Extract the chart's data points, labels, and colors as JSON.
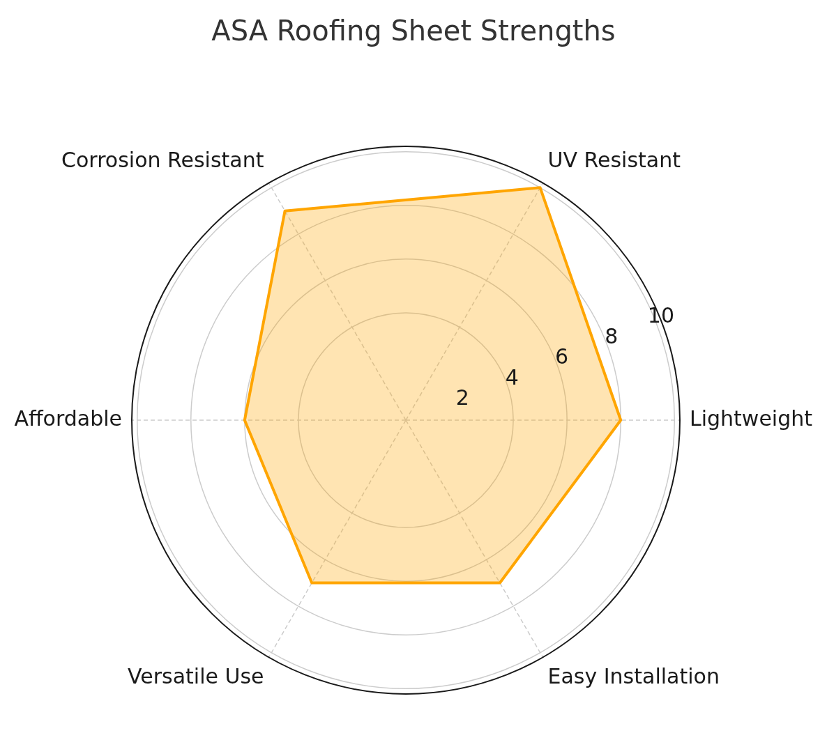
{
  "chart_data": {
    "type": "radar",
    "title": "ASA Roofing Sheet Strengths",
    "categories": [
      "UV Resistant",
      "Lightweight",
      "Easy Installation",
      "Versatile Use",
      "Affordable",
      "Corrosion Resistant"
    ],
    "series": [
      {
        "color": "#ffa500",
        "values": [
          10,
          8,
          7,
          7,
          6,
          9
        ]
      }
    ],
    "ylim": [
      0,
      10.2
    ],
    "yticks": [
      2,
      4,
      6,
      8,
      10
    ],
    "grid": true
  }
}
